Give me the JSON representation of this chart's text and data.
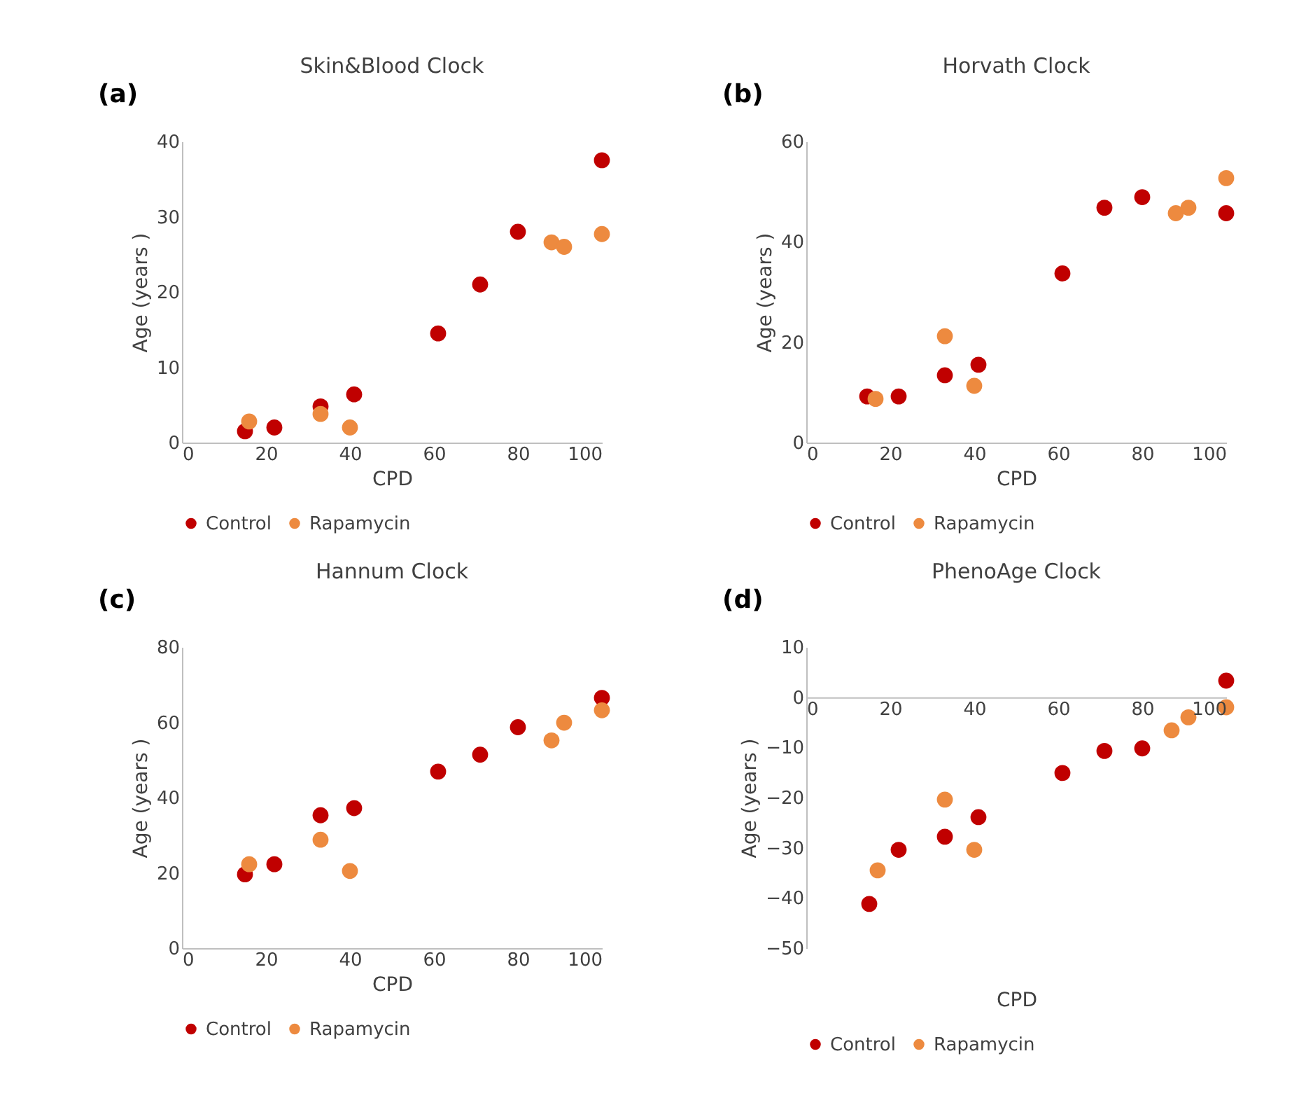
{
  "chart_data": [
    {
      "type": "scatter",
      "title": "Skin&Blood Clock",
      "xlabel": "CPD",
      "ylabel": "Age (years )",
      "annotations": [
        "(a)"
      ],
      "xlim": [
        0,
        100
      ],
      "xticks": [
        0,
        20,
        40,
        60,
        80,
        100
      ],
      "ylim": [
        0,
        40
      ],
      "yticks": [
        0,
        10,
        20,
        30,
        40
      ],
      "grid": false,
      "legend": "bottom",
      "marker": "circle",
      "series": [
        {
          "name": "Control",
          "color": "#c00000",
          "x": [
            15,
            22,
            33,
            41,
            61,
            71,
            80,
            100
          ],
          "values": [
            1.5,
            2.0,
            4.8,
            6.4,
            14.5,
            21.0,
            28.0,
            37.5
          ]
        },
        {
          "name": "Rapamycin",
          "color": "#ed8a3f",
          "x": [
            16,
            33,
            40,
            88,
            91,
            100
          ],
          "values": [
            2.8,
            3.8,
            2.0,
            26.6,
            26.0,
            27.7
          ]
        }
      ]
    },
    {
      "type": "scatter",
      "title": "Horvath Clock",
      "xlabel": "CPD",
      "ylabel": "Age (years )",
      "annotations": [
        "(b)"
      ],
      "xlim": [
        0,
        100
      ],
      "xticks": [
        0,
        20,
        40,
        60,
        80,
        100
      ],
      "ylim": [
        0,
        60
      ],
      "yticks": [
        0,
        20,
        40,
        60
      ],
      "grid": false,
      "legend": "bottom",
      "marker": "circle",
      "series": [
        {
          "name": "Control",
          "color": "#c00000",
          "x": [
            14.5,
            22,
            33,
            41,
            61,
            71,
            80,
            100
          ],
          "values": [
            9.2,
            9.2,
            13.4,
            15.5,
            33.7,
            46.8,
            48.9,
            45.7
          ]
        },
        {
          "name": "Rapamycin",
          "color": "#ed8a3f",
          "x": [
            16.5,
            33,
            40,
            88,
            91,
            100
          ],
          "values": [
            8.7,
            21.2,
            11.3,
            45.7,
            46.8,
            52.7
          ]
        }
      ]
    },
    {
      "type": "scatter",
      "title": "Hannum Clock",
      "xlabel": "CPD",
      "ylabel": "Age (years )",
      "annotations": [
        "(c)"
      ],
      "xlim": [
        0,
        100
      ],
      "xticks": [
        0,
        20,
        40,
        60,
        80,
        100
      ],
      "ylim": [
        0,
        80
      ],
      "yticks": [
        0,
        20,
        40,
        60,
        80
      ],
      "grid": false,
      "legend": "bottom",
      "marker": "circle",
      "series": [
        {
          "name": "Control",
          "color": "#c00000",
          "x": [
            15,
            22,
            33,
            41,
            61,
            71,
            80,
            100
          ],
          "values": [
            19.6,
            22.3,
            35.3,
            37.2,
            46.9,
            51.4,
            58.7,
            66.5
          ]
        },
        {
          "name": "Rapamycin",
          "color": "#ed8a3f",
          "x": [
            16,
            33,
            40,
            88,
            91,
            100
          ],
          "values": [
            22.3,
            28.8,
            20.5,
            55.2,
            59.9,
            63.2
          ]
        }
      ]
    },
    {
      "type": "scatter",
      "title": "PhenoAge Clock",
      "xlabel": "CPD",
      "ylabel": "Age (years )",
      "annotations": [
        "(d)"
      ],
      "xlim": [
        0,
        100
      ],
      "xticks": [
        0,
        20,
        40,
        60,
        80,
        100
      ],
      "ylim": [
        -50,
        10
      ],
      "yticks": [
        -50,
        -40,
        -30,
        -20,
        -10,
        0,
        10
      ],
      "grid": false,
      "legend": "bottom",
      "marker": "circle",
      "series": [
        {
          "name": "Control",
          "color": "#c00000",
          "x": [
            15,
            22,
            33,
            41,
            61,
            71,
            80,
            100
          ],
          "values": [
            -41.2,
            -30.4,
            -27.8,
            -23.9,
            -15.1,
            -10.7,
            -10.2,
            3.3
          ]
        },
        {
          "name": "Rapamycin",
          "color": "#ed8a3f",
          "x": [
            17,
            33,
            40,
            87,
            91,
            100
          ],
          "values": [
            -34.5,
            -20.4,
            -30.4,
            -6.6,
            -4.0,
            -2.0
          ]
        }
      ]
    }
  ]
}
